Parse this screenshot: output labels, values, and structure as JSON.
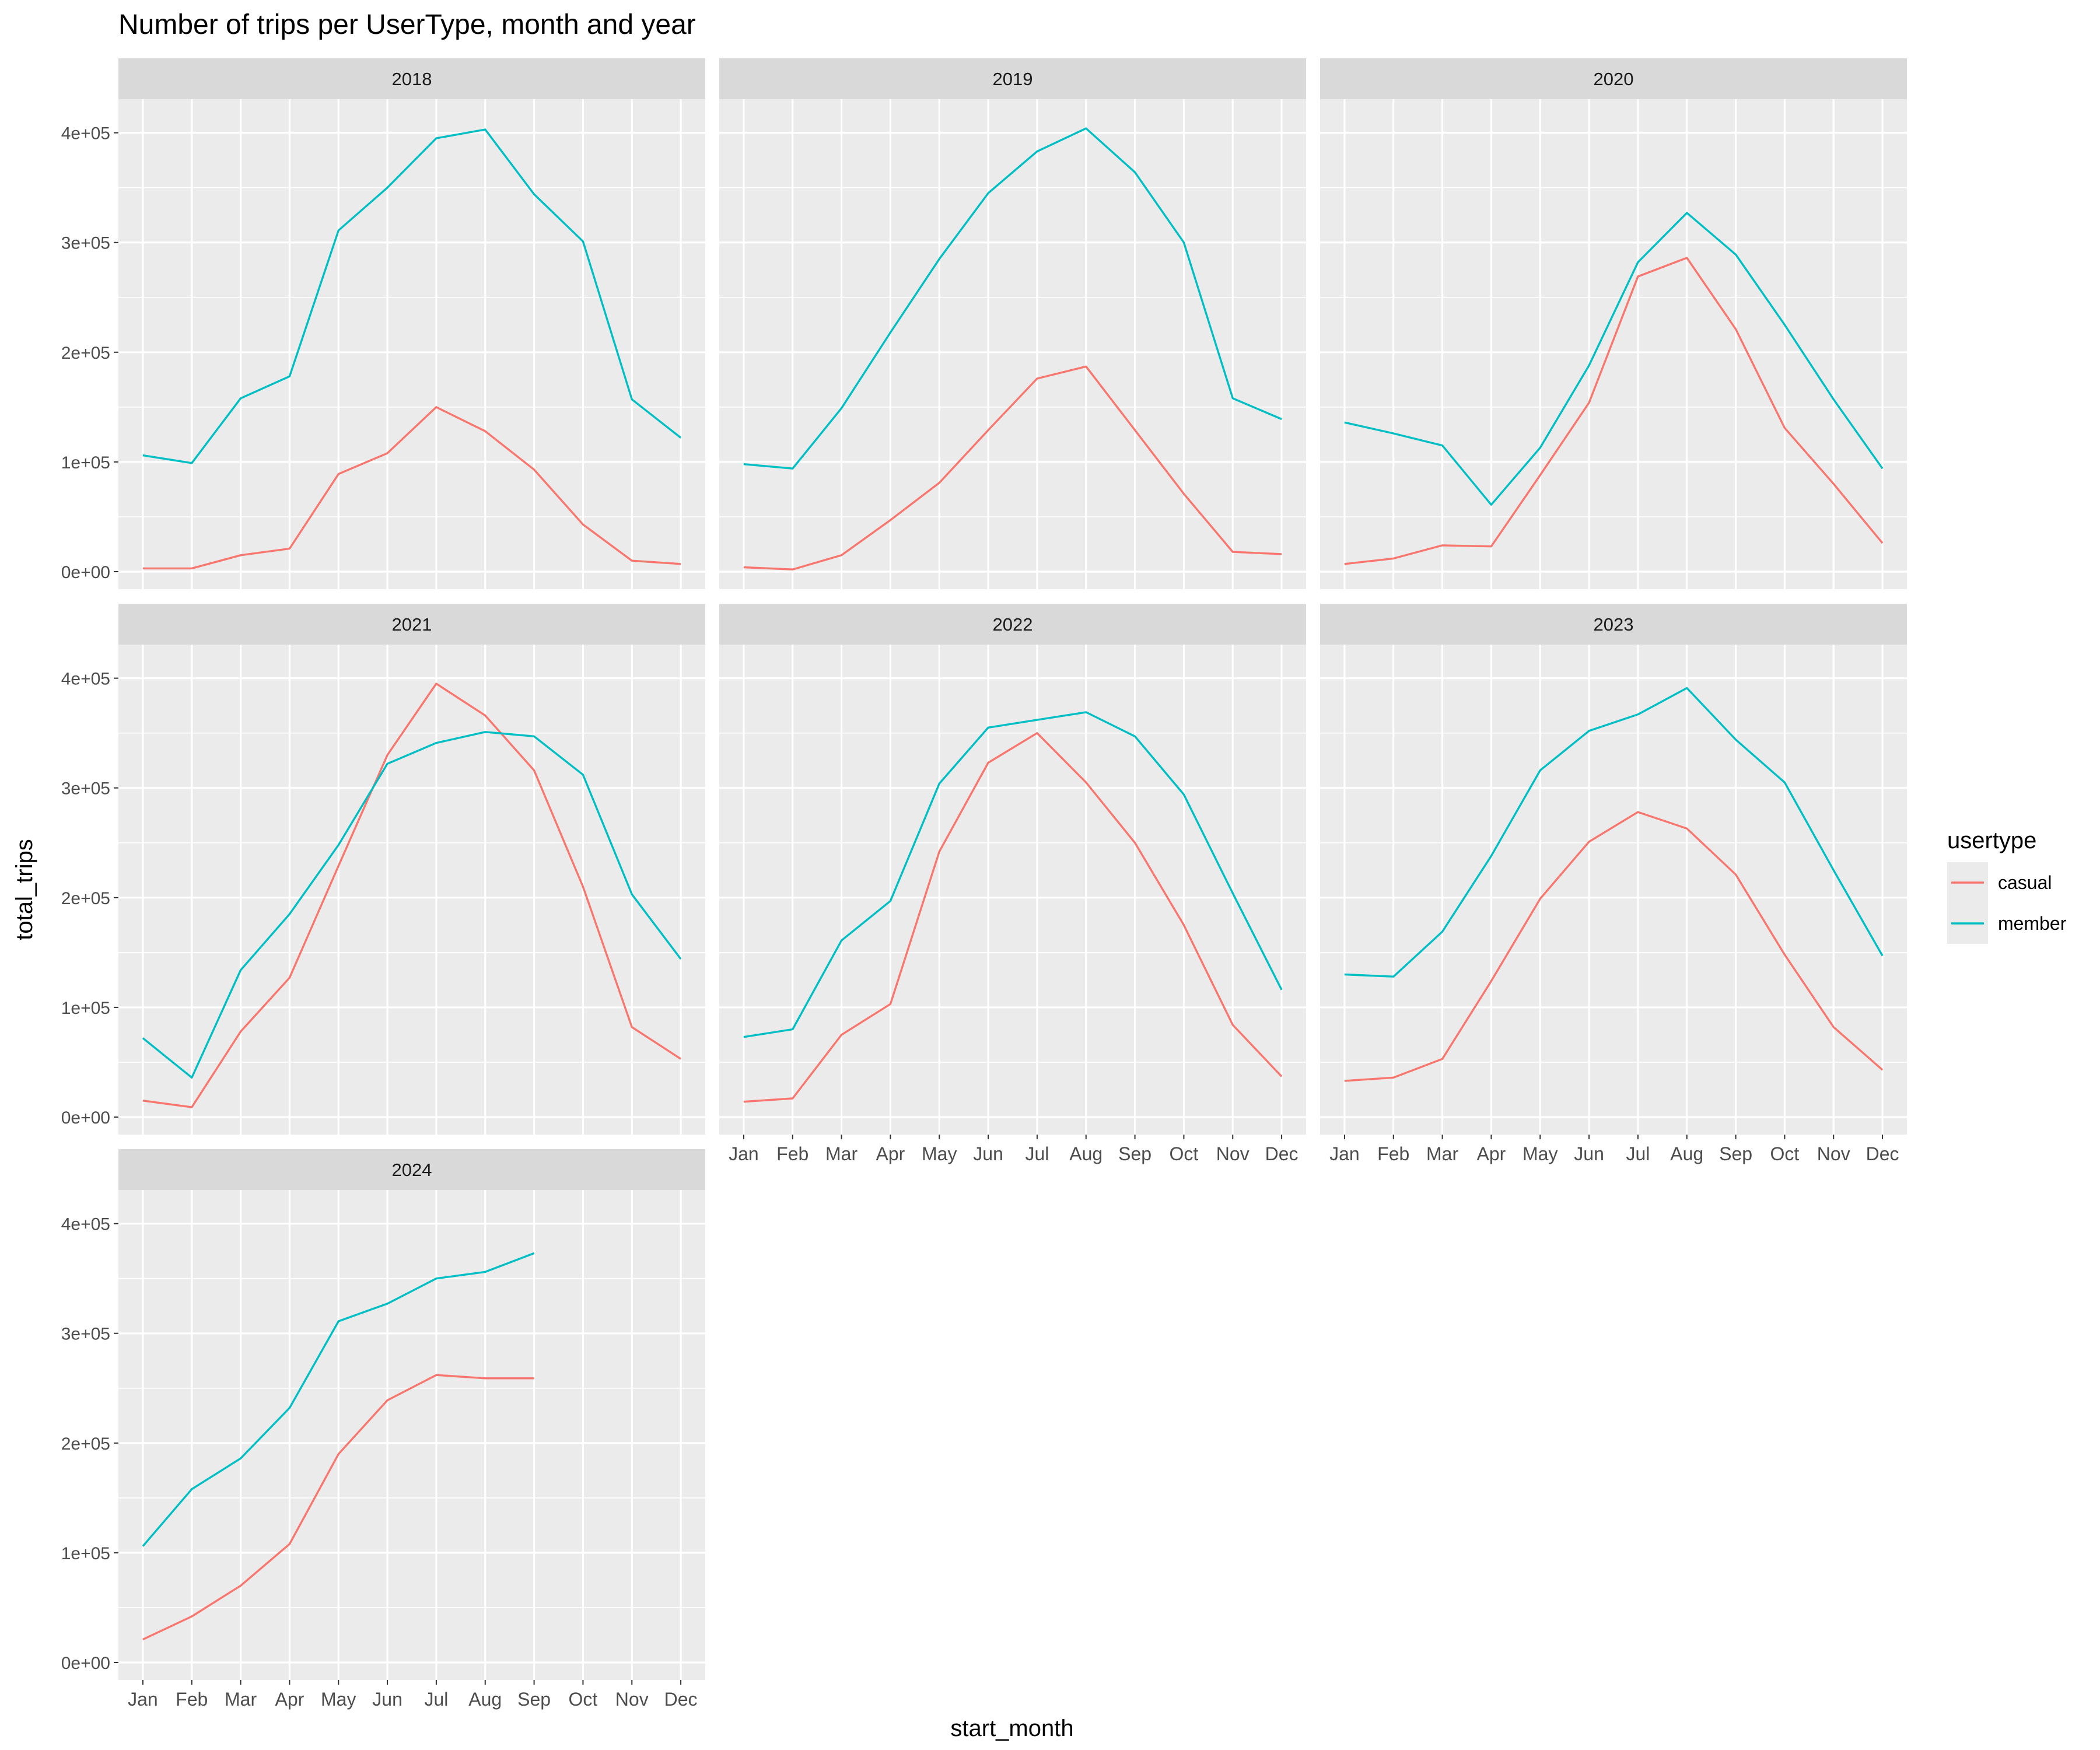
{
  "chart_data": {
    "type": "line",
    "title": "Number of trips per UserType, month and year",
    "xlabel": "start_month",
    "ylabel": "total_trips",
    "categories": [
      "Jan",
      "Feb",
      "Mar",
      "Apr",
      "May",
      "Jun",
      "Jul",
      "Aug",
      "Sep",
      "Oct",
      "Nov",
      "Dec"
    ],
    "ylim": [
      0,
      420000
    ],
    "y_ticks": [
      0,
      100000,
      200000,
      300000,
      400000
    ],
    "y_tick_labels": [
      "0e+00",
      "1e+05",
      "2e+05",
      "3e+05",
      "4e+05"
    ],
    "grid": true,
    "legend": {
      "title": "usertype",
      "position": "right",
      "entries": [
        {
          "name": "casual",
          "color": "#F8766D"
        },
        {
          "name": "member",
          "color": "#00BFC4"
        }
      ]
    },
    "facets": [
      {
        "label": "2018",
        "series": [
          {
            "name": "casual",
            "values": [
              3000,
              3000,
              15000,
              21000,
              89000,
              108000,
              150000,
              128000,
              93000,
              43000,
              10000,
              7000
            ]
          },
          {
            "name": "member",
            "values": [
              106000,
              99000,
              158000,
              178000,
              311000,
              350000,
              395000,
              403000,
              344000,
              301000,
              157000,
              122000
            ]
          }
        ]
      },
      {
        "label": "2019",
        "series": [
          {
            "name": "casual",
            "values": [
              4000,
              2000,
              15000,
              47000,
              81000,
              129000,
              176000,
              187000,
              129000,
              71000,
              18000,
              16000
            ]
          },
          {
            "name": "member",
            "values": [
              98000,
              94000,
              149000,
              218000,
              285000,
              345000,
              383000,
              404000,
              364000,
              300000,
              158000,
              139000
            ]
          }
        ]
      },
      {
        "label": "2020",
        "series": [
          {
            "name": "casual",
            "values": [
              7000,
              12000,
              24000,
              23000,
              88000,
              154000,
              269000,
              286000,
              221000,
              131000,
              80000,
              26000
            ]
          },
          {
            "name": "member",
            "values": [
              136000,
              126000,
              115000,
              61000,
              113000,
              188000,
              282000,
              327000,
              289000,
              225000,
              157000,
              94000
            ]
          }
        ]
      },
      {
        "label": "2021",
        "series": [
          {
            "name": "casual",
            "values": [
              15000,
              9000,
              78000,
              127000,
              229000,
              330000,
              395000,
              366000,
              316000,
              210000,
              82000,
              53000
            ]
          },
          {
            "name": "member",
            "values": [
              72000,
              36000,
              134000,
              185000,
              248000,
              322000,
              341000,
              351000,
              347000,
              312000,
              203000,
              144000
            ]
          }
        ]
      },
      {
        "label": "2022",
        "series": [
          {
            "name": "casual",
            "values": [
              14000,
              17000,
              75000,
              103000,
              242000,
              323000,
              350000,
              305000,
              250000,
              175000,
              84000,
              37000
            ]
          },
          {
            "name": "member",
            "values": [
              73000,
              80000,
              161000,
              197000,
              304000,
              355000,
              362000,
              369000,
              347000,
              294000,
              204000,
              116000
            ]
          }
        ]
      },
      {
        "label": "2023",
        "series": [
          {
            "name": "casual",
            "values": [
              33000,
              36000,
              53000,
              124000,
              199000,
              251000,
              278000,
              263000,
              221000,
              148000,
              82000,
              43000
            ]
          },
          {
            "name": "member",
            "values": [
              130000,
              128000,
              169000,
              238000,
              316000,
              352000,
              367000,
              391000,
              344000,
              305000,
              225000,
              147000
            ]
          }
        ]
      },
      {
        "label": "2024",
        "series": [
          {
            "name": "casual",
            "values": [
              21000,
              42000,
              70000,
              108000,
              190000,
              239000,
              262000,
              259000,
              259000,
              null,
              null,
              null
            ]
          },
          {
            "name": "member",
            "values": [
              106000,
              158000,
              186000,
              232000,
              311000,
              327000,
              350000,
              356000,
              373000,
              null,
              null,
              null
            ]
          }
        ]
      }
    ]
  }
}
